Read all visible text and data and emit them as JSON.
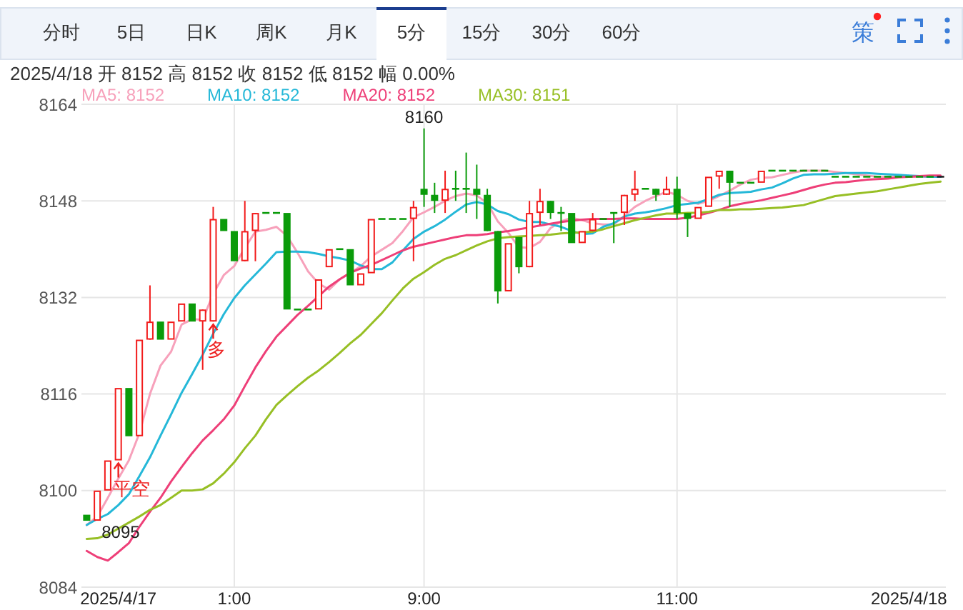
{
  "chart_data": {
    "type": "candlestick",
    "subtitle": "2025/4/18 开 8152 高 8152 收 8152 低 8152 幅 0.00%",
    "categories": [
      null,
      null,
      null,
      "2025/4/17",
      null,
      null,
      null,
      null,
      null,
      null,
      null,
      null,
      null,
      null,
      "1:00",
      null,
      null,
      null,
      null,
      null,
      null,
      null,
      null,
      null,
      null,
      null,
      null,
      null,
      null,
      null,
      null,
      null,
      "9:00",
      null,
      null,
      null,
      null,
      null,
      null,
      null,
      null,
      null,
      null,
      null,
      null,
      null,
      null,
      null,
      null,
      null,
      null,
      null,
      null,
      null,
      null,
      null,
      "11:00",
      null,
      null,
      null,
      null,
      null,
      null,
      null,
      null,
      null,
      null,
      null,
      null,
      null,
      null,
      null,
      null,
      null,
      null,
      null,
      null,
      null,
      "2025/4/18",
      null,
      null,
      null
    ],
    "ohlc": [
      [
        8096,
        8096,
        8095,
        8095
      ],
      [
        8095,
        8100,
        8095,
        8100
      ],
      [
        8100,
        8105,
        8100,
        8105
      ],
      [
        8105,
        8117,
        8105,
        8117
      ],
      [
        8117,
        8117,
        8109,
        8109
      ],
      [
        8109,
        8125,
        8109,
        8125
      ],
      [
        8125,
        8134,
        8125,
        8128
      ],
      [
        8128,
        8128,
        8125,
        8125
      ],
      [
        8125,
        8128,
        8125,
        8128
      ],
      [
        8128,
        8131,
        8128,
        8131
      ],
      [
        8131,
        8131,
        8128,
        8128
      ],
      [
        8128,
        8130,
        8120,
        8130
      ],
      [
        8128,
        8147,
        8128,
        8145
      ],
      [
        8145,
        8145,
        8143,
        8143
      ],
      [
        8143,
        8143,
        8138,
        8138
      ],
      [
        8138,
        8148,
        8138,
        8143
      ],
      [
        8143,
        8146,
        8138,
        8146
      ],
      [
        8146,
        8146,
        8146,
        8146
      ],
      [
        8146,
        8146,
        8146,
        8146
      ],
      [
        8146,
        8146,
        8130,
        8130
      ],
      [
        8130,
        8130,
        8130,
        8130
      ],
      [
        8130,
        8130,
        8130,
        8130
      ],
      [
        8130,
        8135,
        8130,
        8135
      ],
      [
        8137,
        8140,
        8137,
        8140
      ],
      [
        8140,
        8140,
        8140,
        8140
      ],
      [
        8140,
        8140,
        8134,
        8134
      ],
      [
        8134,
        8136,
        8134,
        8136
      ],
      [
        8136,
        8145,
        8136,
        8145
      ],
      [
        8145,
        8145,
        8145,
        8145
      ],
      [
        8145,
        8145,
        8145,
        8145
      ],
      [
        8145,
        8145,
        8145,
        8145
      ],
      [
        8145,
        8148,
        8138,
        8147
      ],
      [
        8150,
        8160,
        8147,
        8149
      ],
      [
        8149,
        8151,
        8146,
        8148
      ],
      [
        8148,
        8153,
        8146,
        8150
      ],
      [
        8150,
        8153,
        8148,
        8150
      ],
      [
        8150,
        8156,
        8146,
        8150
      ],
      [
        8150,
        8154,
        8145,
        8149
      ],
      [
        8149,
        8150,
        8143,
        8143
      ],
      [
        8143,
        8143,
        8131,
        8133
      ],
      [
        8133,
        8141,
        8133,
        8141
      ],
      [
        8142,
        8142,
        8136,
        8137
      ],
      [
        8137,
        8148,
        8137,
        8146
      ],
      [
        8146,
        8150,
        8144,
        8148
      ],
      [
        8148,
        8148,
        8145,
        8146
      ],
      [
        8146,
        8147,
        8143,
        8146
      ],
      [
        8146,
        8146,
        8141,
        8141
      ],
      [
        8141,
        8143,
        8141,
        8143
      ],
      [
        8143,
        8146,
        8143,
        8145
      ],
      [
        8145,
        8145,
        8145,
        8145
      ],
      [
        8146,
        8146,
        8141,
        8146
      ],
      [
        8146,
        8149,
        8144,
        8149
      ],
      [
        8149,
        8153,
        8148,
        8150
      ],
      [
        8150,
        8150,
        8150,
        8150
      ],
      [
        8150,
        8150,
        8148,
        8149
      ],
      [
        8149,
        8152,
        8149,
        8150
      ],
      [
        8150,
        8152,
        8145,
        8146
      ],
      [
        8146,
        8146,
        8142,
        8145
      ],
      [
        8145,
        8147,
        8145,
        8147
      ],
      [
        8147,
        8152,
        8147,
        8152
      ],
      [
        8152,
        8153,
        8150,
        8153
      ],
      [
        8153,
        8153,
        8147,
        8151
      ],
      [
        8151,
        8151,
        8151,
        8151
      ],
      [
        8151,
        8151,
        8151,
        8151
      ],
      [
        8151,
        8153,
        8151,
        8153
      ],
      [
        8153,
        8153,
        8153,
        8153
      ],
      [
        8153,
        8153,
        8153,
        8153
      ],
      [
        8153,
        8153,
        8153,
        8153
      ],
      [
        8153,
        8153,
        8153,
        8153
      ],
      [
        8153,
        8153,
        8153,
        8153
      ],
      [
        8153,
        8153,
        8153,
        8153
      ],
      [
        8152,
        8152,
        8152,
        8152
      ],
      [
        8152,
        8152,
        8152,
        8152
      ],
      [
        8152,
        8152,
        8152,
        8152
      ],
      [
        8152,
        8152,
        8152,
        8152
      ],
      [
        8152,
        8152,
        8152,
        8152
      ],
      [
        8152,
        8152,
        8152,
        8152
      ],
      [
        8152,
        8152,
        8152,
        8152
      ],
      [
        8152,
        8152,
        8152,
        8152
      ],
      [
        8152,
        8152,
        8152,
        8152
      ],
      [
        8152,
        8152,
        8152,
        8152
      ],
      [
        8152,
        8152,
        8152,
        8152
      ]
    ],
    "colors": [
      "#0a9b0a",
      "#f21b1b",
      "#f21b1b",
      "#f21b1b",
      "#0a9b0a",
      "#f21b1b",
      "#f21b1b",
      "#0a9b0a",
      "#f21b1b",
      "#f21b1b",
      "#0a9b0a",
      "#f21b1b",
      "#f21b1b",
      "#0a9b0a",
      "#0a9b0a",
      "#f21b1b",
      "#f21b1b",
      "#0a9b0a",
      "#0a9b0a",
      "#0a9b0a",
      "#0a9b0a",
      "#0a9b0a",
      "#f21b1b",
      "#f21b1b",
      "#0a9b0a",
      "#0a9b0a",
      "#f21b1b",
      "#f21b1b",
      "#0a9b0a",
      "#0a9b0a",
      "#0a9b0a",
      "#f21b1b",
      "#0a9b0a",
      "#0a9b0a",
      "#f21b1b",
      "#0a9b0a",
      "#0a9b0a",
      "#0a9b0a",
      "#0a9b0a",
      "#0a9b0a",
      "#f21b1b",
      "#0a9b0a",
      "#f21b1b",
      "#f21b1b",
      "#0a9b0a",
      "#0a9b0a",
      "#0a9b0a",
      "#f21b1b",
      "#f21b1b",
      "#0a9b0a",
      "#0a9b0a",
      "#f21b1b",
      "#f21b1b",
      "#0a9b0a",
      "#0a9b0a",
      "#f21b1b",
      "#0a9b0a",
      "#0a9b0a",
      "#f21b1b",
      "#f21b1b",
      "#f21b1b",
      "#0a9b0a",
      "#0a9b0a",
      "#0a9b0a",
      "#f21b1b",
      "#0a9b0a",
      "#0a9b0a",
      "#0a9b0a",
      "#0a9b0a",
      "#0a9b0a",
      "#0a9b0a",
      "#0a9b0a",
      "#0a9b0a",
      "#0a9b0a",
      "#0a9b0a",
      "#0a9b0a",
      "#0a9b0a",
      "#0a9b0a",
      "#0a9b0a",
      "#0a9b0a",
      "#0a9b0a",
      "#222222"
    ],
    "series": [
      {
        "name": "MA5: 8152",
        "type": "line",
        "color": "#f7a1bb",
        "values": [
          8094.3,
          8095.7,
          8098.8,
          8102,
          8105,
          8109.5,
          8116,
          8120.7,
          8123,
          8127.5,
          8128.4,
          8128.3,
          8132.6,
          8135.7,
          8137.2,
          8140.2,
          8142.9,
          8143.2,
          8143.7,
          8142.2,
          8139.4,
          8136.3,
          8134.3,
          8133.3,
          8135,
          8136,
          8137.2,
          8138.8,
          8139.9,
          8141,
          8143,
          8145.3,
          8146.1,
          8147,
          8148,
          8148.8,
          8149.2,
          8148.9,
          8147.6,
          8144.6,
          8142.7,
          8140.3,
          8140.2,
          8141.2,
          8143.5,
          8144.6,
          8145.2,
          8144.8,
          8144.3,
          8144.1,
          8144.1,
          8145.5,
          8147,
          8148,
          8148.8,
          8149.5,
          8149,
          8148,
          8147.5,
          8148,
          8148.8,
          8149.7,
          8150.7,
          8151.5,
          8151.8,
          8151.9,
          8152.3,
          8152.7,
          8153,
          8153,
          8153,
          8152.8,
          8152.6,
          8152.4,
          8152.2,
          8152,
          8152,
          8152,
          8152,
          8152,
          8152,
          8152
        ]
      },
      {
        "name": "MA10: 8152",
        "type": "line",
        "color": "#25b8d8",
        "values": [
          8094.3,
          8095.3,
          8096.1,
          8097.6,
          8099.4,
          8102.4,
          8105.5,
          8109.1,
          8112.6,
          8116.2,
          8119.3,
          8122.5,
          8126,
          8129.2,
          8131.9,
          8134,
          8135.8,
          8137.6,
          8139.5,
          8139.6,
          8139.6,
          8139.5,
          8139.2,
          8138.8,
          8138.5,
          8138.1,
          8137.3,
          8136.7,
          8136.7,
          8137.8,
          8139.8,
          8141.7,
          8142.9,
          8143.8,
          8144.9,
          8146.2,
          8147.4,
          8147.8,
          8147.4,
          8146.3,
          8145.8,
          8144.9,
          8144.5,
          8144.5,
          8144.1,
          8143.7,
          8143,
          8142.5,
          8142.6,
          8143.7,
          8144.3,
          8145.4,
          8145.9,
          8146.1,
          8146.4,
          8146.8,
          8147.3,
          8147.5,
          8147.7,
          8148.3,
          8149,
          8149.3,
          8149.4,
          8149.5,
          8149.9,
          8150.2,
          8150.9,
          8151.7,
          8152.3,
          8152.4,
          8152.4,
          8152.5,
          8152.6,
          8152.6,
          8152.6,
          8152.5,
          8152.4,
          8152.3,
          8152.2,
          8152.1,
          8152,
          8152
        ]
      },
      {
        "name": "MA20: 8152",
        "type": "line",
        "color": "#ee3f78",
        "values": [
          8090,
          8089,
          8088.4,
          8089.8,
          8091.3,
          8094,
          8096.5,
          8098.8,
          8101.5,
          8103.9,
          8106.2,
          8108.3,
          8110,
          8111.8,
          8114.1,
          8117.3,
          8120.4,
          8123.1,
          8125.5,
          8127.3,
          8129.1,
          8130.6,
          8132.2,
          8133.8,
          8135,
          8136.1,
          8136.8,
          8137.4,
          8138.2,
          8139,
          8139.8,
          8140.4,
          8140.8,
          8141.2,
          8141.6,
          8142,
          8142.3,
          8142.3,
          8142.5,
          8142.8,
          8143,
          8143.3,
          8143.6,
          8143.9,
          8144.2,
          8144.5,
          8144.7,
          8144.9,
          8145,
          8145,
          8145,
          8145.1,
          8145.1,
          8145,
          8145,
          8145,
          8145,
          8145.2,
          8145.6,
          8146,
          8146.5,
          8147.1,
          8147.5,
          8147.8,
          8148.1,
          8148.5,
          8148.9,
          8149.3,
          8149.8,
          8150.3,
          8150.7,
          8151,
          8151.1,
          8151.3,
          8151.5,
          8151.6,
          8151.7,
          8151.9,
          8152,
          8152.1,
          8152.2,
          8152.2
        ]
      },
      {
        "name": "MA30: 8151",
        "type": "line",
        "color": "#97bf25",
        "values": [
          8092,
          8092.1,
          8092.7,
          8093.7,
          8094.7,
          8095.7,
          8096.8,
          8097.6,
          8098.8,
          8100,
          8100,
          8100.2,
          8101.2,
          8102.8,
          8104.7,
          8107,
          8109.1,
          8111.8,
          8114.2,
          8115.8,
          8117.3,
          8118.7,
          8119.9,
          8121.3,
          8122.8,
          8124.4,
          8125.8,
          8127.6,
          8129.4,
          8131.5,
          8133.5,
          8135.1,
          8136.2,
          8137.4,
          8138.4,
          8139,
          8139.8,
          8140.6,
          8141.3,
          8141.8,
          8142,
          8142.1,
          8142.2,
          8142.3,
          8142.4,
          8142.6,
          8142.7,
          8142.8,
          8142.9,
          8143.3,
          8143.8,
          8144.3,
          8144.8,
          8145.2,
          8145.6,
          8145.9,
          8145.9,
          8146,
          8146,
          8146.2,
          8146.5,
          8146.5,
          8146.6,
          8146.6,
          8146.7,
          8146.8,
          8146.9,
          8147.1,
          8147.3,
          8147.8,
          8148.3,
          8148.8,
          8149,
          8149.2,
          8149.4,
          8149.6,
          8149.9,
          8150.2,
          8150.5,
          8150.8,
          8151,
          8151.2
        ]
      }
    ],
    "ylim": [
      8084,
      8164
    ],
    "yticks": [
      8084,
      8100,
      8116,
      8132,
      8148,
      8164
    ],
    "grid": true,
    "legend": "top left",
    "annotations": [
      "分时",
      "5日",
      "日K",
      "周K",
      "月K",
      "5分",
      "15分",
      "30分",
      "60分",
      "策",
      {
        "text": "8160",
        "y": 8160
      },
      {
        "text": "8095",
        "y": 8095
      },
      {
        "text": "平空",
        "y": 8105
      },
      {
        "text": "多",
        "y": 8128
      }
    ]
  }
}
